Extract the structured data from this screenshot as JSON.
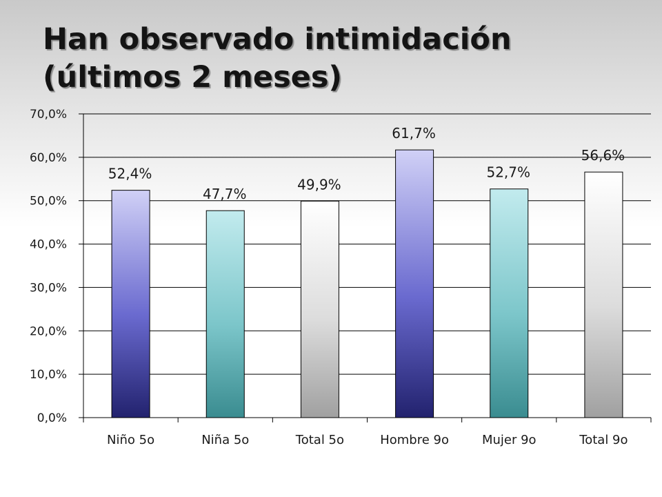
{
  "chart_data": {
    "type": "bar",
    "title_lines": [
      "Han observado intimidación",
      "(últimos 2 meses)"
    ],
    "categories": [
      "Niño 5o",
      "Niña 5o",
      "Total 5o",
      "Hombre 9o",
      "Mujer 9o",
      "Total 9o"
    ],
    "values": [
      52.4,
      47.7,
      49.9,
      61.7,
      52.7,
      56.6
    ],
    "data_labels": [
      "52,4%",
      "47,7%",
      "49,9%",
      "61,7%",
      "52,7%",
      "56,6%"
    ],
    "y_ticks": [
      "0,0%",
      "10,0%",
      "20,0%",
      "30,0%",
      "40,0%",
      "50,0%",
      "60,0%",
      "70,0%"
    ],
    "ylim": [
      0,
      70
    ],
    "y_step": 10,
    "grid": true,
    "legend": "none",
    "bar_colors": [
      [
        "#d0d0f6",
        "#6a6acf",
        "#22226e"
      ],
      [
        "#c2ebee",
        "#7cc6ca",
        "#3a8c90"
      ],
      [
        "#ffffff",
        "#dcdcdc",
        "#a0a0a0"
      ],
      [
        "#d0d0f6",
        "#6a6acf",
        "#22226e"
      ],
      [
        "#c2ebee",
        "#7cc6ca",
        "#3a8c90"
      ],
      [
        "#ffffff",
        "#dcdcdc",
        "#a0a0a0"
      ]
    ]
  }
}
